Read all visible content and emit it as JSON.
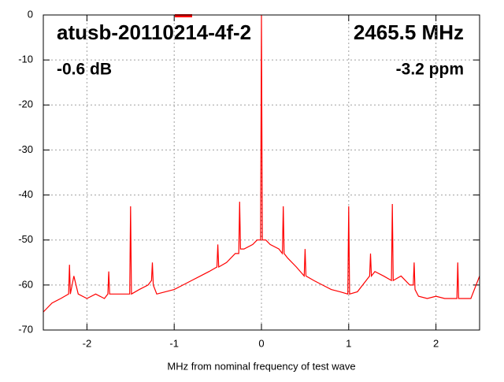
{
  "chart_data": {
    "type": "line",
    "annotations": [
      "atusb-20110214-4f-2",
      "2465.5 MHz",
      "-0.6 dB",
      "-3.2 ppm"
    ],
    "xlabel": "MHz from nominal frequency of test wave",
    "x": [
      -2.5,
      -2.4,
      -2.3,
      -2.21,
      -2.2,
      -2.19,
      -2.15,
      -2.1,
      -2.0,
      -1.9,
      -1.8,
      -1.76,
      -1.75,
      -1.74,
      -1.7,
      -1.6,
      -1.51,
      -1.5,
      -1.49,
      -1.4,
      -1.3,
      -1.26,
      -1.25,
      -1.24,
      -1.2,
      -1.1,
      -1.0,
      -0.9,
      -0.8,
      -0.7,
      -0.6,
      -0.51,
      -0.5,
      -0.49,
      -0.4,
      -0.3,
      -0.26,
      -0.25,
      -0.24,
      -0.2,
      -0.1,
      -0.05,
      -0.01,
      0,
      0.01,
      0.05,
      0.1,
      0.2,
      0.24,
      0.25,
      0.26,
      0.3,
      0.4,
      0.49,
      0.5,
      0.51,
      0.6,
      0.7,
      0.8,
      0.9,
      0.99,
      1.0,
      1.01,
      1.1,
      1.2,
      1.24,
      1.25,
      1.26,
      1.3,
      1.4,
      1.49,
      1.5,
      1.51,
      1.6,
      1.7,
      1.74,
      1.75,
      1.76,
      1.8,
      1.9,
      2.0,
      2.1,
      2.2,
      2.24,
      2.25,
      2.26,
      2.3,
      2.4,
      2.5
    ],
    "series": [
      {
        "color": "#ff0000",
        "values": [
          -66,
          -64,
          -63,
          -62,
          -55.5,
          -62,
          -58,
          -62,
          -63,
          -62,
          -63,
          -62,
          -57,
          -62,
          -62,
          -62,
          -62,
          -42.5,
          -62,
          -61,
          -60,
          -59,
          -55,
          -60,
          -62,
          -61.5,
          -61,
          -60,
          -59,
          -58,
          -57,
          -56,
          -51,
          -56,
          -55,
          -53,
          -53,
          -41.5,
          -52,
          -52,
          -51,
          -50,
          -50,
          0,
          -50,
          -50,
          -51,
          -52,
          -53,
          -42.5,
          -53,
          -54,
          -56,
          -58,
          -52,
          -58,
          -59,
          -60,
          -61,
          -61.5,
          -62,
          -42.5,
          -62,
          -61.5,
          -59,
          -58,
          -53,
          -58,
          -57,
          -58,
          -59,
          -42,
          -59,
          -58,
          -60,
          -60,
          -55,
          -61,
          -62.5,
          -63,
          -62.5,
          -63,
          -63,
          -63,
          -55,
          -63,
          -63,
          -63,
          -58
        ]
      }
    ],
    "xlim": [
      -2.5,
      2.5
    ],
    "ylim": [
      -70,
      0
    ],
    "xticks": [
      -2,
      -1,
      0,
      1,
      2
    ],
    "yticks": [
      0,
      -10,
      -20,
      -30,
      -40,
      -50,
      -60,
      -70
    ],
    "grid": true
  }
}
